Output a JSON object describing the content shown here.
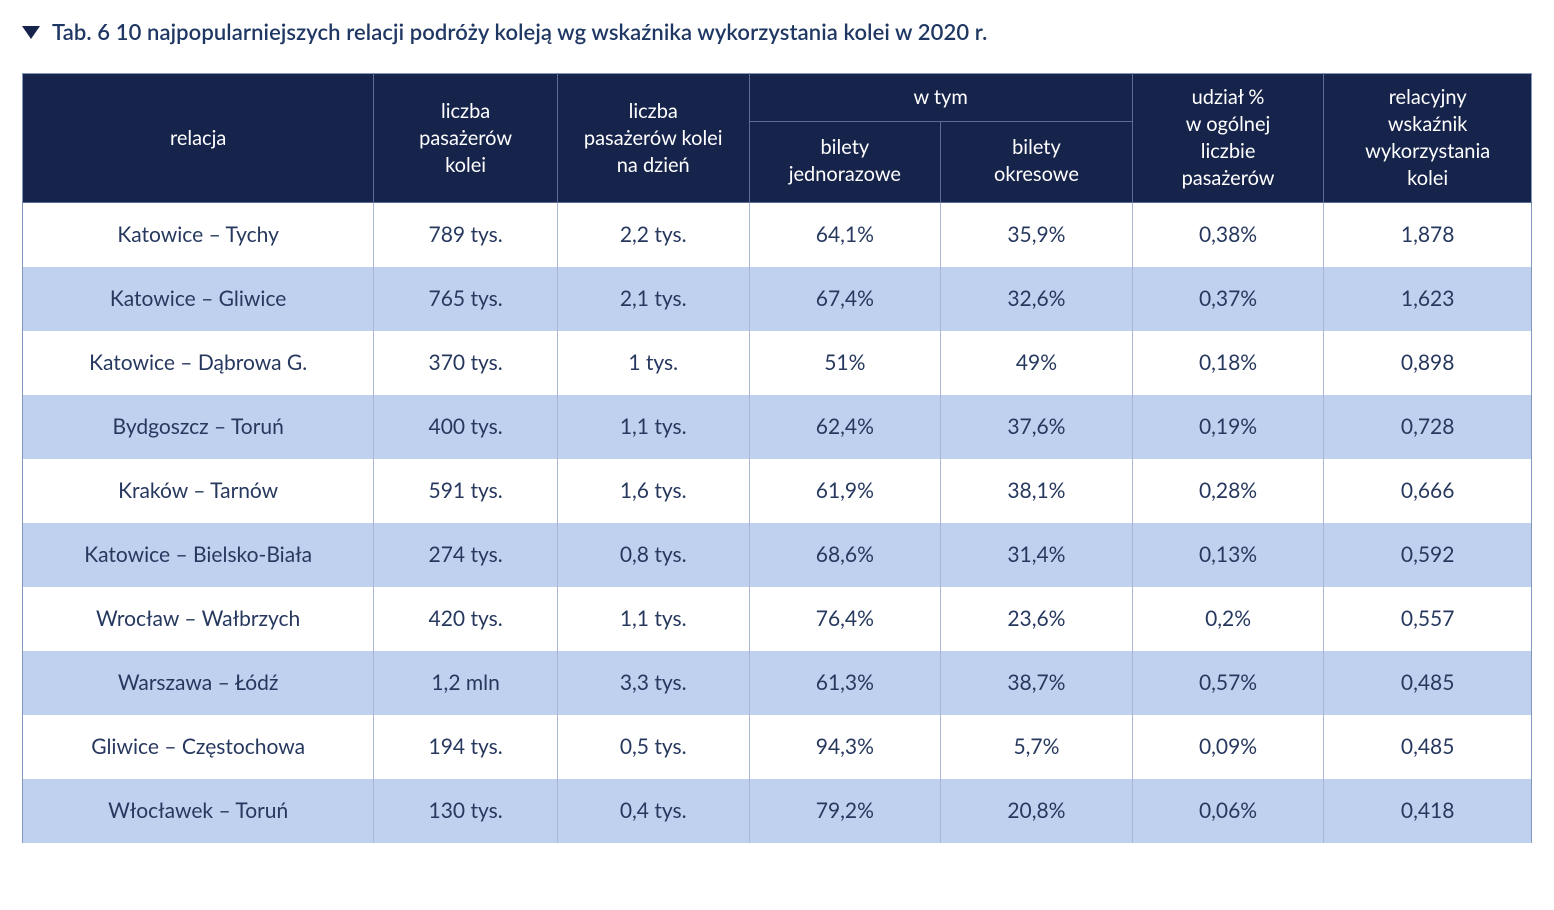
{
  "title": "Tab. 6  10 najpopularniejszych relacji podróży koleją wg wskaźnika wykorzystania kolei w 2020 r.",
  "table": {
    "type": "table",
    "header_bg": "#16234b",
    "header_fg": "#ffffff",
    "row_alt_bg": "#bfd1ee",
    "row_bg": "#ffffff",
    "border_color": "#8298bf",
    "font_size_header": 20,
    "font_size_body": 21,
    "columns": {
      "relacja": "relacja",
      "liczba_pasazerow": "liczba\npasażerów\nkolei",
      "na_dzien": "liczba\npasażerów kolei\nna dzień",
      "w_tym": "w tym",
      "bilety_jednorazowe": "bilety\njednorazowe",
      "bilety_okresowe": "bilety\nokresowe",
      "udzial": "udział %\nw ogólnej\nliczbie\npasażerów",
      "wskaznik": "relacyjny\nwskaźnik\nwykorzystania\nkolei"
    },
    "rows": [
      {
        "relacja": "Katowice – Tychy",
        "p": "789 tys.",
        "d": "2,2 tys.",
        "bj": "64,1%",
        "bo": "35,9%",
        "u": "0,38%",
        "w": "1,878"
      },
      {
        "relacja": "Katowice – Gliwice",
        "p": "765 tys.",
        "d": "2,1 tys.",
        "bj": "67,4%",
        "bo": "32,6%",
        "u": "0,37%",
        "w": "1,623"
      },
      {
        "relacja": "Katowice – Dąbrowa G.",
        "p": "370 tys.",
        "d": "1 tys.",
        "bj": "51%",
        "bo": "49%",
        "u": "0,18%",
        "w": "0,898"
      },
      {
        "relacja": "Bydgoszcz – Toruń",
        "p": "400 tys.",
        "d": "1,1 tys.",
        "bj": "62,4%",
        "bo": "37,6%",
        "u": "0,19%",
        "w": "0,728"
      },
      {
        "relacja": "Kraków – Tarnów",
        "p": "591 tys.",
        "d": "1,6 tys.",
        "bj": "61,9%",
        "bo": "38,1%",
        "u": "0,28%",
        "w": "0,666"
      },
      {
        "relacja": "Katowice – Bielsko-Biała",
        "p": "274 tys.",
        "d": "0,8 tys.",
        "bj": "68,6%",
        "bo": "31,4%",
        "u": "0,13%",
        "w": "0,592"
      },
      {
        "relacja": "Wrocław – Wałbrzych",
        "p": "420 tys.",
        "d": "1,1 tys.",
        "bj": "76,4%",
        "bo": "23,6%",
        "u": "0,2%",
        "w": "0,557"
      },
      {
        "relacja": "Warszawa – Łódź",
        "p": "1,2 mln",
        "d": "3,3 tys.",
        "bj": "61,3%",
        "bo": "38,7%",
        "u": "0,57%",
        "w": "0,485"
      },
      {
        "relacja": "Gliwice – Częstochowa",
        "p": "194 tys.",
        "d": "0,5 tys.",
        "bj": "94,3%",
        "bo": "5,7%",
        "u": "0,09%",
        "w": "0,485"
      },
      {
        "relacja": "Włocławek – Toruń",
        "p": "130 tys.",
        "d": "0,4 tys.",
        "bj": "79,2%",
        "bo": "20,8%",
        "u": "0,06%",
        "w": "0,418"
      }
    ]
  }
}
